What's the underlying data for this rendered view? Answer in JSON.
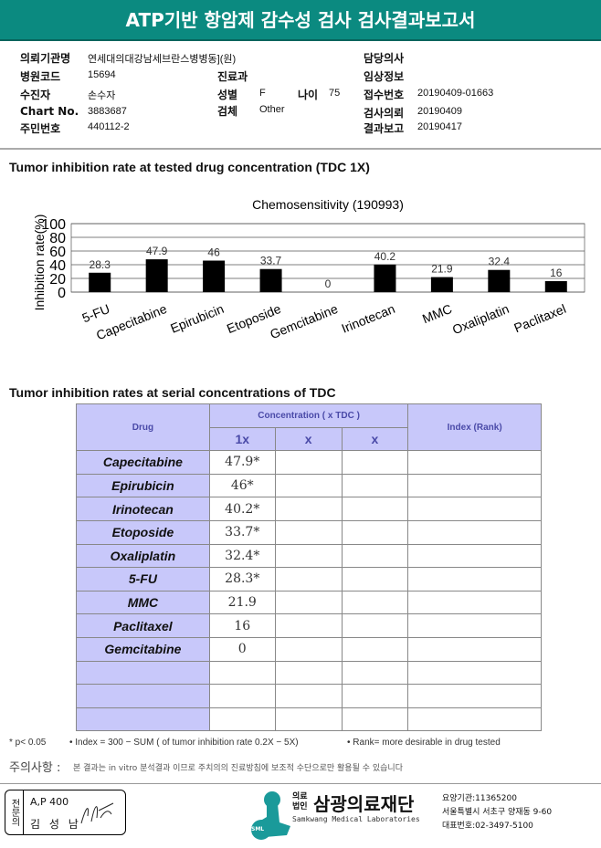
{
  "title": "ATP기반 항암제 감수성 검사 검사결과보고서",
  "info": {
    "institution_label": "의뢰기관명",
    "institution": "연세대의대강남세브란스병병동](원)",
    "hospital_code_label": "병원코드",
    "hospital_code": "15694",
    "patient_label": "수진자",
    "patient": "손수자",
    "chart_no_label": "Chart No.",
    "chart_no": "3883687",
    "resident_no_label": "주민번호",
    "resident_no": "440112-2",
    "department_label": "진료과",
    "sex_label": "성별",
    "sex": "F",
    "age_label": "나이",
    "age": "75",
    "specimen_label": "검체",
    "specimen": "Other",
    "doctor_label": "담당의사",
    "clinical_label": "임상정보",
    "receipt_no_label": "접수번호",
    "receipt_no": "20190409-01663",
    "request_label": "검사의뢰",
    "request_date": "20190409",
    "report_label": "결과보고",
    "report_date": "20190417"
  },
  "section1_title": "Tumor inhibition rate at tested drug concentration (TDC 1X)",
  "chart_data": {
    "type": "bar",
    "title": "Chemosensitivity (190993)",
    "ylabel": "Inhibition rate(%)",
    "xlabel": "",
    "ylim": [
      0,
      100
    ],
    "yticks": [
      "0",
      "20",
      "40",
      "60",
      "80",
      "100"
    ],
    "grid": true,
    "bar_color": "#000000",
    "categories": [
      "5-FU",
      "Capecitabine",
      "Epirubicin",
      "Etoposide",
      "Gemcitabine",
      "Irinotecan",
      "MMC",
      "Oxaliplatin",
      "Paclitaxel"
    ],
    "values": [
      28.3,
      47.9,
      46,
      33.7,
      0,
      40.2,
      21.9,
      32.4,
      16
    ],
    "labels": [
      "28.3",
      "47.9",
      "46",
      "33.7",
      "0",
      "40.2",
      "21.9",
      "32.4",
      "16"
    ]
  },
  "section2_title": "Tumor inhibition rates at serial concentrations of TDC",
  "table": {
    "drug_header": "Drug",
    "conc_header": "Concentration ( x TDC )",
    "index_header": "Index (Rank)",
    "sub_headers": [
      "1x",
      "x",
      "x"
    ],
    "rows": [
      {
        "drug": "Capecitabine",
        "v1": "47.9*"
      },
      {
        "drug": "Epirubicin",
        "v1": "46*"
      },
      {
        "drug": "Irinotecan",
        "v1": "40.2*"
      },
      {
        "drug": "Etoposide",
        "v1": "33.7*"
      },
      {
        "drug": "Oxaliplatin",
        "v1": "32.4*"
      },
      {
        "drug": "5-FU",
        "v1": "28.3*"
      },
      {
        "drug": "MMC",
        "v1": "21.9"
      },
      {
        "drug": "Paclitaxel",
        "v1": "16"
      },
      {
        "drug": "Gemcitabine",
        "v1": "0"
      },
      {
        "drug": "",
        "v1": ""
      },
      {
        "drug": "",
        "v1": ""
      },
      {
        "drug": "",
        "v1": ""
      }
    ]
  },
  "notes": [
    "* p< 0.05",
    "• Index = 300 − SUM ( of tumor inhibition rate 0.2X  −  5X)",
    "• Rank= more desirable in drug tested"
  ],
  "caution_label": "주의사항 :",
  "caution": "본 결과는 in vitro 분석결과 이므로 주치의의 진료방침에 보조적 수단으로만 활용될 수 있습니다",
  "signature": {
    "role": "전문의",
    "code": "A,P 400",
    "name": "김 성 남"
  },
  "footer": {
    "logo_prefix": "의료법인",
    "org": "삼광의료재단",
    "org_en": "Samkwang Medical Laboratories",
    "logo_mark": "SML",
    "code": "요양기관:11365200",
    "address": "서울특별시 서초구 양재동 9-60",
    "phone": "대표번호:02-3497-5100",
    "brand_color": "#1a9a9a"
  }
}
